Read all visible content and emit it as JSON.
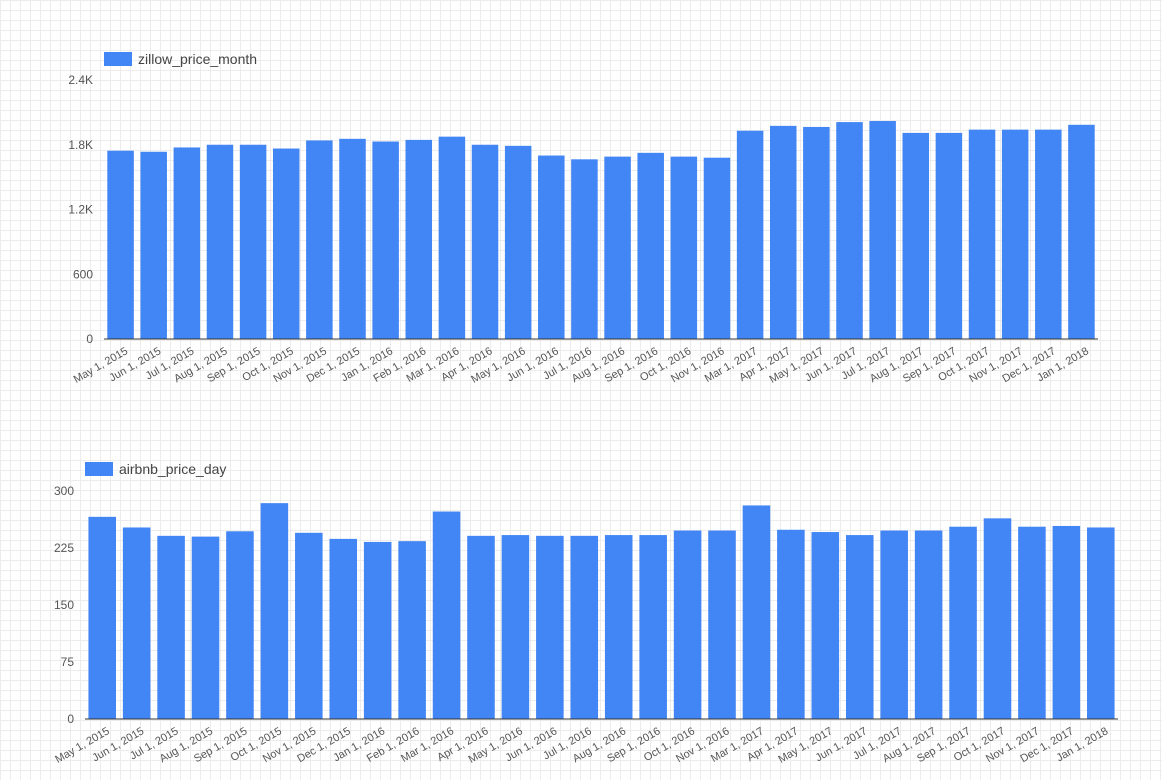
{
  "accent_color": "#4285f4",
  "chart_data": [
    {
      "type": "bar",
      "legend": {
        "label": "zillow_price_month",
        "position": "top-left"
      },
      "categories": [
        "May 1, 2015",
        "Jun 1, 2015",
        "Jul 1, 2015",
        "Aug 1, 2015",
        "Sep 1, 2015",
        "Oct 1, 2015",
        "Nov 1, 2015",
        "Dec 1, 2015",
        "Jan 1, 2016",
        "Feb 1, 2016",
        "Mar 1, 2016",
        "Apr 1, 2016",
        "May 1, 2016",
        "Jun 1, 2016",
        "Jul 1, 2016",
        "Aug 1, 2016",
        "Sep 1, 2016",
        "Oct 1, 2016",
        "Nov 1, 2016",
        "Mar 1, 2017",
        "Apr 1, 2017",
        "May 1, 2017",
        "Jun 1, 2017",
        "Jul 1, 2017",
        "Aug 1, 2017",
        "Sep 1, 2017",
        "Oct 1, 2017",
        "Nov 1, 2017",
        "Dec 1, 2017",
        "Jan 1, 2018"
      ],
      "series": [
        {
          "name": "zillow_price_month",
          "values": [
            1745,
            1735,
            1775,
            1800,
            1800,
            1765,
            1840,
            1855,
            1830,
            1845,
            1875,
            1800,
            1790,
            1700,
            1665,
            1690,
            1725,
            1690,
            1680,
            1930,
            1975,
            1965,
            2010,
            2020,
            1910,
            1910,
            1940,
            1940,
            1940,
            1985
          ]
        }
      ],
      "yticks": [
        "0",
        "600",
        "1.2K",
        "1.8K",
        "2.4K"
      ],
      "ylim": [
        0,
        2400
      ],
      "grid": true
    },
    {
      "type": "bar",
      "legend": {
        "label": "airbnb_price_day",
        "position": "top-left"
      },
      "categories": [
        "May 1, 2015",
        "Jun 1, 2015",
        "Jul 1, 2015",
        "Aug 1, 2015",
        "Sep 1, 2015",
        "Oct 1, 2015",
        "Nov 1, 2015",
        "Dec 1, 2015",
        "Jan 1, 2016",
        "Feb 1, 2016",
        "Mar 1, 2016",
        "Apr 1, 2016",
        "May 1, 2016",
        "Jun 1, 2016",
        "Jul 1, 2016",
        "Aug 1, 2016",
        "Sep 1, 2016",
        "Oct 1, 2016",
        "Nov 1, 2016",
        "Mar 1, 2017",
        "Apr 1, 2017",
        "May 1, 2017",
        "Jun 1, 2017",
        "Jul 1, 2017",
        "Aug 1, 2017",
        "Sep 1, 2017",
        "Oct 1, 2017",
        "Nov 1, 2017",
        "Dec 1, 2017",
        "Jan 1, 2018"
      ],
      "series": [
        {
          "name": "airbnb_price_day",
          "values": [
            266,
            252,
            241,
            240,
            247,
            284,
            245,
            237,
            233,
            234,
            273,
            241,
            242,
            241,
            241,
            242,
            242,
            248,
            248,
            281,
            249,
            246,
            242,
            248,
            248,
            253,
            264,
            253,
            254,
            252
          ]
        }
      ],
      "yticks": [
        "0",
        "75",
        "150",
        "225",
        "300"
      ],
      "ylim": [
        0,
        300
      ],
      "grid": true
    }
  ]
}
